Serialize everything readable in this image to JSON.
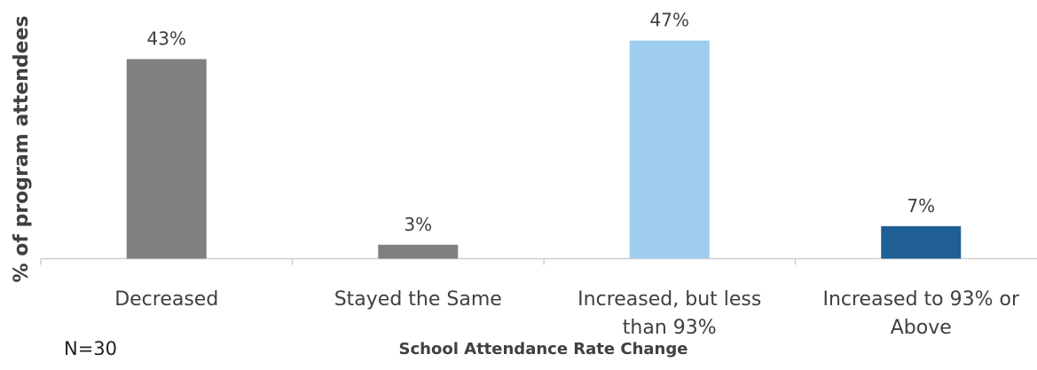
{
  "chart_data": {
    "type": "bar",
    "categories": [
      [
        "Decreased"
      ],
      [
        "Stayed the Same"
      ],
      [
        "Increased, but less",
        "than 93%"
      ],
      [
        "Increased to 93% or",
        "Above"
      ]
    ],
    "values": [
      43,
      3,
      47,
      7
    ],
    "data_labels": [
      "43%",
      "3%",
      "47%",
      "7%"
    ],
    "bar_colors": [
      "#808080",
      "#808080",
      "#9fcdee",
      "#1f5f93"
    ],
    "title": "",
    "xlabel": "School Attendance Rate Change",
    "ylabel": "% of program attendees",
    "ylim": [
      0,
      50
    ],
    "grid": false,
    "legend": "none"
  },
  "note": "N=30"
}
